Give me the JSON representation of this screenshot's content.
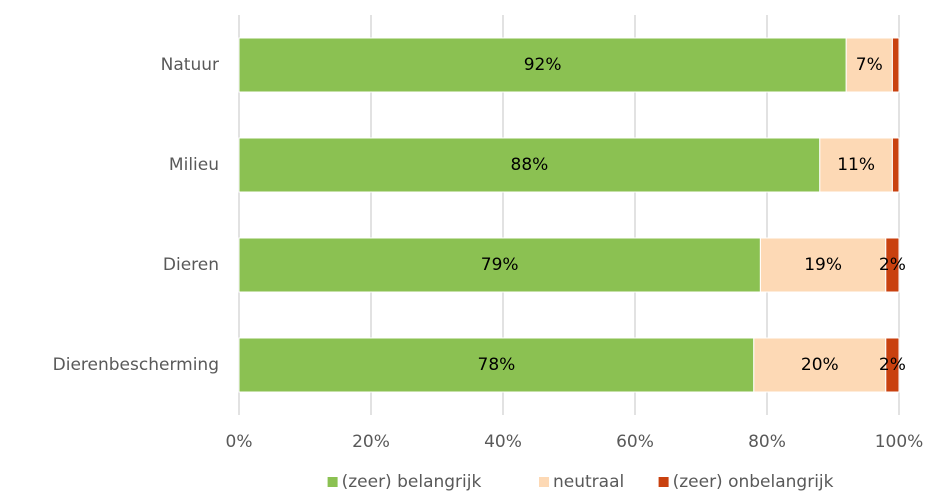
{
  "chart_data": {
    "type": "stacked_barh",
    "categories": [
      "Natuur",
      "Milieu",
      "Dieren",
      "Dierenbescherming"
    ],
    "series": [
      {
        "name": "(zeer) belangrijk",
        "color": "#8bc152",
        "values": [
          92,
          88,
          79,
          78
        ],
        "value_labels": [
          "92%",
          "88%",
          "79%",
          "78%"
        ]
      },
      {
        "name": "neutraal",
        "color": "#fdd9b5",
        "values": [
          7,
          11,
          19,
          20
        ],
        "value_labels": [
          "7%",
          "11%",
          "19%",
          "20%"
        ]
      },
      {
        "name": "(zeer) onbelangrijk",
        "color": "#c9410f",
        "values": [
          1,
          1,
          2,
          2
        ],
        "value_labels": [
          null,
          null,
          "2%",
          "2%"
        ]
      }
    ],
    "xlim": [
      0,
      100
    ],
    "xticks": [
      {
        "value": 0,
        "label": "0%"
      },
      {
        "value": 20,
        "label": "20%"
      },
      {
        "value": 40,
        "label": "40%"
      },
      {
        "value": 60,
        "label": "60%"
      },
      {
        "value": 80,
        "label": "80%"
      },
      {
        "value": 100,
        "label": "100%"
      }
    ],
    "grid": true,
    "legend": "bottom"
  }
}
